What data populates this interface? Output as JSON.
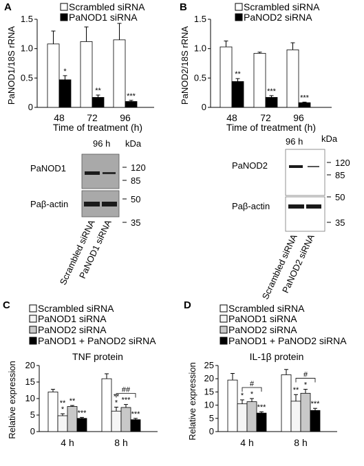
{
  "panels": {
    "A": {
      "letter": "A",
      "legend": [
        "Scrambled siRNA",
        "PaNOD1 siRNA"
      ],
      "ylabel": "PaNOD1/18S rRNA",
      "xtitle": "Time of treatment (h)",
      "yticks": [
        "0",
        "0.5",
        "1.0",
        "1.5"
      ],
      "blot": {
        "time_label": "96 h",
        "unit_label": "kDa",
        "row1_label": "PaNOD1",
        "row2_label": "Paβ-actin",
        "markers_top": [
          "120",
          "85"
        ],
        "markers_bottom": [
          "50",
          "35"
        ],
        "lanes": [
          "Scrambled siRNA",
          "PaNOD1 siRNA"
        ]
      }
    },
    "B": {
      "letter": "B",
      "legend": [
        "Scrambled siRNA",
        "PaNOD2 siRNA"
      ],
      "ylabel": "PaNOD2/18S rRNA",
      "xtitle": "Time of treatment (h)",
      "yticks": [
        "0",
        "0.5",
        "1.0",
        "1.5"
      ],
      "blot": {
        "time_label": "96 h",
        "unit_label": "kDa",
        "row1_label": "PaNOD2",
        "row2_label": "Paβ-actin",
        "markers_top": [
          "120",
          "85"
        ],
        "markers_bottom": [
          "50",
          "35"
        ],
        "lanes": [
          "Scrambled siRNA",
          "PaNOD2 siRNA"
        ]
      }
    },
    "C": {
      "letter": "C",
      "legend": [
        "Scrambled siRNA",
        "PaNOD1 siRNA",
        "PaNOD2 siRNA",
        "PaNOD1 + PaNOD2 siRNA"
      ],
      "title": "TNF protein",
      "ylabel": "Relative expression",
      "yticks": [
        "0",
        "5",
        "10",
        "15",
        "20"
      ]
    },
    "D": {
      "letter": "D",
      "legend": [
        "Scrambled siRNA",
        "PaNOD1 siRNA",
        "PaNOD2 siRNA",
        "PaNOD1 + PaNOD2 siRNA"
      ],
      "title": "IL-1β protein",
      "ylabel": "Relative expression",
      "yticks": [
        "0",
        "5",
        "10",
        "15",
        "20",
        "25"
      ]
    }
  },
  "colors": {
    "scrambled": "#ffffff",
    "panod1": "#f5f5f5",
    "panod2": "#c8c8c8",
    "combo": "#000000",
    "blot_bg": "#a9a9a9",
    "blot_band": "#1a1a1a"
  },
  "chart_data": [
    {
      "panel": "A",
      "type": "bar",
      "categories": [
        "48",
        "72",
        "96"
      ],
      "xlabel": "Time of treatment (h)",
      "ylabel": "PaNOD1/18S rRNA",
      "ylim": [
        0,
        1.5
      ],
      "series": [
        {
          "name": "Scrambled siRNA",
          "values": [
            1.08,
            1.12,
            1.15
          ],
          "errors": [
            0.22,
            0.25,
            0.28
          ],
          "color": "#ffffff"
        },
        {
          "name": "PaNOD1 siRNA",
          "values": [
            0.47,
            0.17,
            0.1
          ],
          "errors": [
            0.07,
            0.04,
            0.02
          ],
          "color": "#000000"
        }
      ],
      "annotations": [
        {
          "category": "48",
          "series": 1,
          "text": "*"
        },
        {
          "category": "72",
          "series": 1,
          "text": "**"
        },
        {
          "category": "96",
          "series": 1,
          "text": "***"
        }
      ]
    },
    {
      "panel": "B",
      "type": "bar",
      "categories": [
        "48",
        "72",
        "96"
      ],
      "xlabel": "Time of treatment (h)",
      "ylabel": "PaNOD2/18S rRNA",
      "ylim": [
        0,
        1.5
      ],
      "series": [
        {
          "name": "Scrambled siRNA",
          "values": [
            1.03,
            0.92,
            0.98
          ],
          "errors": [
            0.1,
            0.02,
            0.12
          ],
          "color": "#ffffff"
        },
        {
          "name": "PaNOD2 siRNA",
          "values": [
            0.44,
            0.17,
            0.08
          ],
          "errors": [
            0.05,
            0.03,
            0.01
          ],
          "color": "#000000"
        }
      ],
      "annotations": [
        {
          "category": "48",
          "series": 1,
          "text": "**"
        },
        {
          "category": "72",
          "series": 1,
          "text": "***"
        },
        {
          "category": "96",
          "series": 1,
          "text": "***"
        }
      ]
    },
    {
      "panel": "C",
      "type": "bar",
      "title": "TNF protein",
      "categories": [
        "4 h",
        "8 h"
      ],
      "ylabel": "Relative expression",
      "ylim": [
        0,
        20
      ],
      "series": [
        {
          "name": "Scrambled siRNA",
          "values": [
            12.0,
            16.0
          ],
          "errors": [
            0.8,
            1.5
          ],
          "color": "#ffffff"
        },
        {
          "name": "PaNOD1 siRNA",
          "values": [
            4.8,
            6.2
          ],
          "errors": [
            0.6,
            1.2
          ],
          "color": "#f5f5f5"
        },
        {
          "name": "PaNOD2 siRNA",
          "values": [
            7.6,
            7.3
          ],
          "errors": [
            0.3,
            0.9
          ],
          "color": "#c8c8c8"
        },
        {
          "name": "PaNOD1 + PaNOD2 siRNA",
          "values": [
            4.0,
            3.6
          ],
          "errors": [
            0.3,
            0.4
          ],
          "color": "#000000"
        }
      ],
      "annotations": [
        {
          "category": "4 h",
          "series": 1,
          "text": "*"
        },
        {
          "category": "4 h",
          "series": 1,
          "text": "**"
        },
        {
          "category": "4 h",
          "series": 2,
          "text": "**"
        },
        {
          "category": "4 h",
          "series": 3,
          "text": "***"
        },
        {
          "category": "8 h",
          "series": 1,
          "text": "*"
        },
        {
          "category": "8 h",
          "series": 1,
          "text": "**"
        },
        {
          "category": "8 h",
          "series": 2,
          "text": "***"
        },
        {
          "category": "8 h",
          "series": 3,
          "text": "***"
        },
        {
          "category": "8 h",
          "bracket": true,
          "text": "##"
        }
      ]
    },
    {
      "panel": "D",
      "type": "bar",
      "title": "IL-1β protein",
      "categories": [
        "4 h",
        "8 h"
      ],
      "ylabel": "Relative expression",
      "ylim": [
        0,
        25
      ],
      "series": [
        {
          "name": "Scrambled siRNA",
          "values": [
            19.5,
            21.5
          ],
          "errors": [
            2.5,
            2.0
          ],
          "color": "#ffffff"
        },
        {
          "name": "PaNOD1 siRNA",
          "values": [
            10.5,
            11.5
          ],
          "errors": [
            1.5,
            2.5
          ],
          "color": "#f5f5f5"
        },
        {
          "name": "PaNOD2 siRNA",
          "values": [
            11.3,
            14.5
          ],
          "errors": [
            1.2,
            1.5
          ],
          "color": "#c8c8c8"
        },
        {
          "name": "PaNOD1 + PaNOD2 siRNA",
          "values": [
            7.0,
            8.0
          ],
          "errors": [
            0.5,
            0.8
          ],
          "color": "#000000"
        }
      ],
      "annotations": [
        {
          "category": "4 h",
          "series": 1,
          "text": "*"
        },
        {
          "category": "4 h",
          "series": 2,
          "text": "*"
        },
        {
          "category": "4 h",
          "series": 3,
          "text": "***"
        },
        {
          "category": "4 h",
          "bracket": true,
          "text": "#"
        },
        {
          "category": "8 h",
          "series": 1,
          "text": "**"
        },
        {
          "category": "8 h",
          "series": 2,
          "text": "*"
        },
        {
          "category": "8 h",
          "series": 3,
          "text": "***"
        },
        {
          "category": "8 h",
          "bracket": true,
          "text": "#"
        }
      ]
    }
  ]
}
